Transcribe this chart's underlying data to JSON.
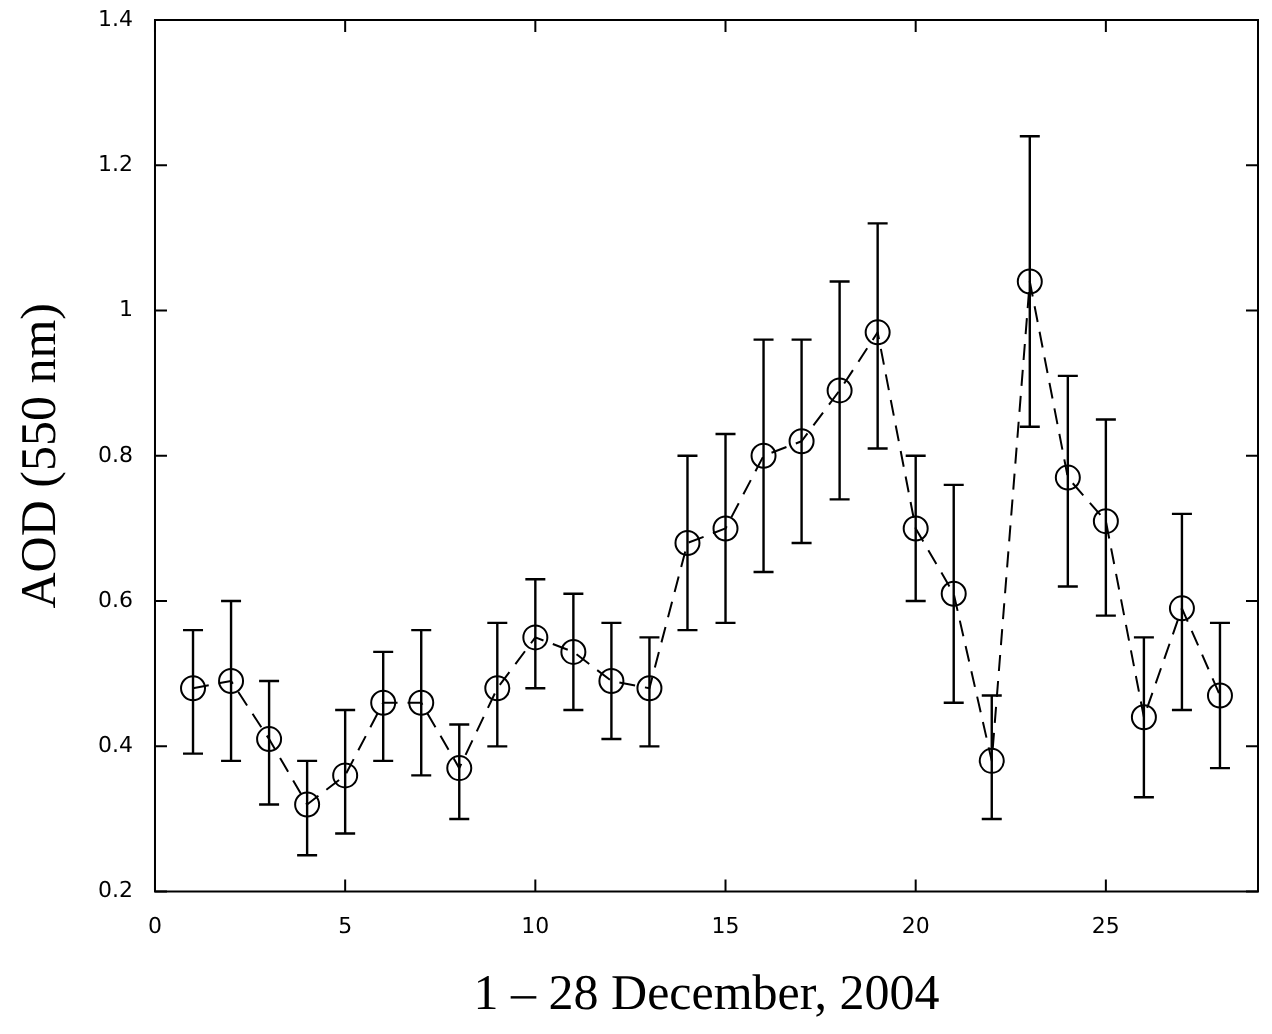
{
  "chart_data": {
    "type": "line",
    "xlabel": "1 – 28 December, 2004",
    "ylabel": "AOD (550 nm)",
    "x": [
      1,
      2,
      3,
      4,
      5,
      6,
      7,
      8,
      9,
      10,
      11,
      12,
      13,
      14,
      15,
      16,
      17,
      18,
      19,
      20,
      21,
      22,
      23,
      24,
      25,
      26,
      27,
      28
    ],
    "series": [
      {
        "color": "#000000",
        "values": [
          0.48,
          0.49,
          0.41,
          0.32,
          0.36,
          0.46,
          0.46,
          0.37,
          0.48,
          0.55,
          0.53,
          0.49,
          0.48,
          0.68,
          0.7,
          0.8,
          0.82,
          0.89,
          0.97,
          0.7,
          0.61,
          0.38,
          1.04,
          0.77,
          0.71,
          0.44,
          0.59,
          0.47
        ],
        "errors": [
          [
            0.39,
            0.56
          ],
          [
            0.38,
            0.6
          ],
          [
            0.32,
            0.49
          ],
          [
            0.25,
            0.38
          ],
          [
            0.28,
            0.45
          ],
          [
            0.38,
            0.53
          ],
          [
            0.36,
            0.56
          ],
          [
            0.3,
            0.43
          ],
          [
            0.4,
            0.57
          ],
          [
            0.48,
            0.63
          ],
          [
            0.45,
            0.61
          ],
          [
            0.41,
            0.57
          ],
          [
            0.4,
            0.55
          ],
          [
            0.56,
            0.8
          ],
          [
            0.57,
            0.83
          ],
          [
            0.64,
            0.96
          ],
          [
            0.68,
            0.96
          ],
          [
            0.74,
            1.04
          ],
          [
            0.81,
            1.12
          ],
          [
            0.6,
            0.8
          ],
          [
            0.46,
            0.76
          ],
          [
            0.3,
            0.47
          ],
          [
            0.84,
            1.24
          ],
          [
            0.62,
            0.91
          ],
          [
            0.58,
            0.85
          ],
          [
            0.33,
            0.55
          ],
          [
            0.45,
            0.72
          ],
          [
            0.37,
            0.57
          ]
        ]
      }
    ],
    "xlim": [
      0,
      29
    ],
    "xticks": [
      0,
      5,
      10,
      15,
      20,
      25
    ],
    "ylim": [
      0.2,
      1.4
    ],
    "yticks": [
      {
        "value": 0.2,
        "label": "0.2"
      },
      {
        "value": 0.4,
        "label": "0.4"
      },
      {
        "value": 0.6,
        "label": "0.6"
      },
      {
        "value": 0.8,
        "label": "0.8"
      },
      1,
      {
        "value": 1.2,
        "label": "1.2"
      },
      {
        "value": 1.4,
        "label": "1.4"
      }
    ],
    "marker": "circle",
    "line_style": "dashed",
    "legend": false
  }
}
